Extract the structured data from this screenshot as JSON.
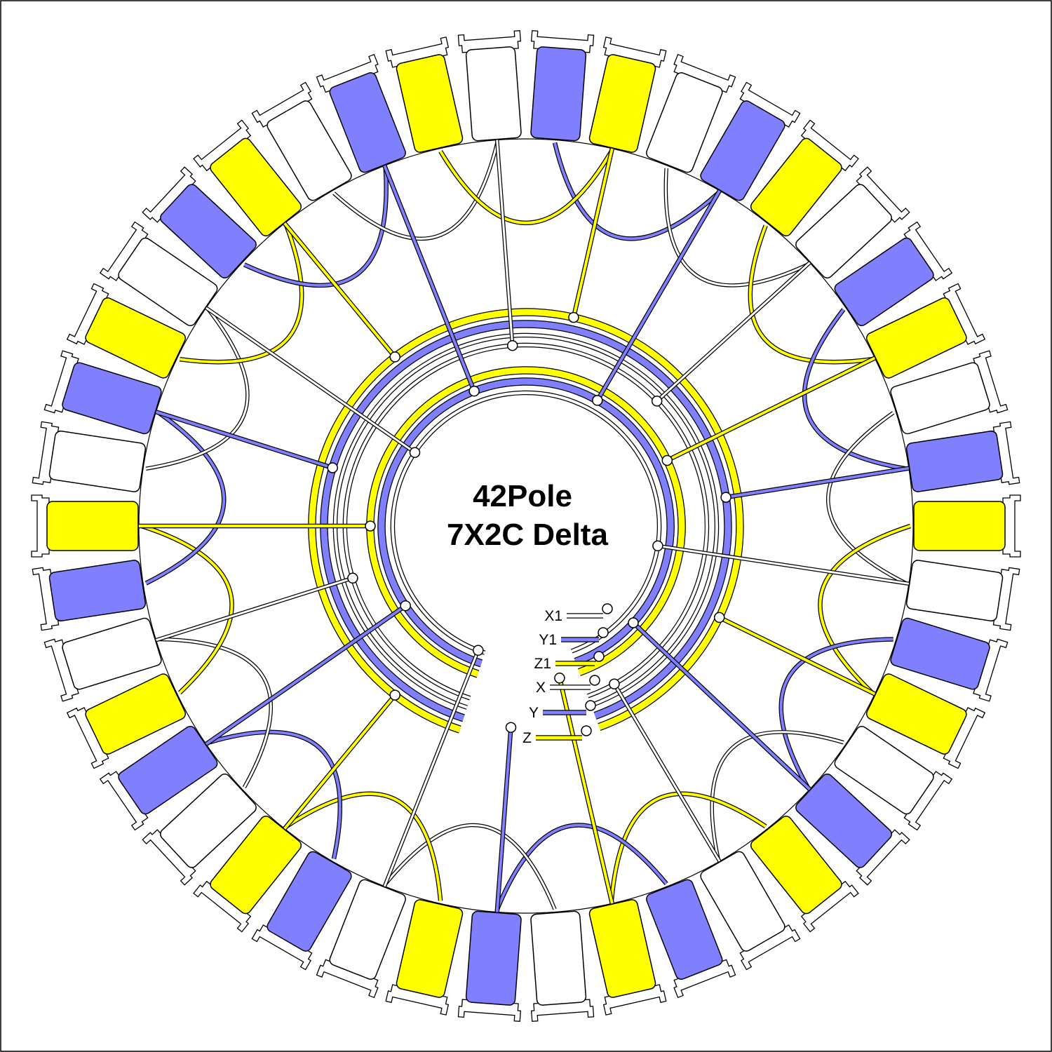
{
  "title": {
    "line1": "42Pole",
    "line2": "7X2C Delta"
  },
  "colors": {
    "blue": "#8080ff",
    "yellow": "#ffff00",
    "white": "#ffffff",
    "outline": "#000000"
  },
  "pole_count": 42,
  "pole_pattern": [
    "blue",
    "yellow",
    "white"
  ],
  "terminals": [
    {
      "label": "X1",
      "color": "white"
    },
    {
      "label": "Y1",
      "color": "blue"
    },
    {
      "label": "Z1",
      "color": "yellow"
    },
    {
      "label": "X",
      "color": "white"
    },
    {
      "label": "Y",
      "color": "blue"
    },
    {
      "label": "Z",
      "color": "yellow"
    }
  ],
  "rings": [
    "yellow",
    "blue",
    "white",
    "white",
    "yellow",
    "blue",
    "white"
  ]
}
